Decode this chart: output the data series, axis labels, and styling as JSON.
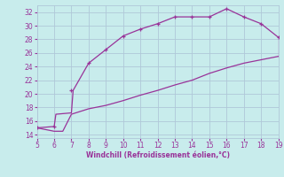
{
  "xlabel": "Windchill (Refroidissement éolien,°C)",
  "bg_color": "#c8ecec",
  "grid_color": "#b0c8d8",
  "line_color": "#993399",
  "xlim": [
    5,
    19
  ],
  "ylim": [
    13.5,
    33.0
  ],
  "xticks": [
    5,
    6,
    7,
    8,
    9,
    10,
    11,
    12,
    13,
    14,
    15,
    16,
    17,
    18,
    19
  ],
  "yticks": [
    14,
    16,
    18,
    20,
    22,
    24,
    26,
    28,
    30,
    32
  ],
  "upper_line_x": [
    5.0,
    6.0,
    6.1,
    7.0,
    7.1,
    8.0,
    9.0,
    10.0,
    11.0,
    12.0,
    13.0,
    14.0,
    15.0,
    16.0,
    17.0,
    18.0,
    19.0
  ],
  "upper_line_y": [
    15.0,
    15.2,
    17.0,
    17.2,
    20.5,
    24.5,
    26.5,
    28.5,
    29.5,
    30.3,
    31.3,
    31.3,
    31.3,
    32.5,
    31.3,
    30.3,
    28.3
  ],
  "lower_line_x": [
    5.0,
    6.0,
    6.5,
    7.0,
    8.0,
    9.0,
    10.0,
    11.0,
    12.0,
    13.0,
    14.0,
    15.0,
    16.0,
    17.0,
    18.0,
    19.0
  ],
  "lower_line_y": [
    15.0,
    14.5,
    14.5,
    17.0,
    17.8,
    18.3,
    19.0,
    19.8,
    20.5,
    21.3,
    22.0,
    23.0,
    23.8,
    24.5,
    25.0,
    25.5
  ],
  "marker_x": [
    5,
    6,
    7,
    8,
    9,
    10,
    11,
    12,
    13,
    14,
    15,
    16,
    17,
    18,
    19
  ],
  "marker_y": [
    15.0,
    15.2,
    20.5,
    24.5,
    26.5,
    28.5,
    29.5,
    30.3,
    31.3,
    31.3,
    31.3,
    32.5,
    31.3,
    30.3,
    28.3
  ],
  "xlabel_fontsize": 5.5,
  "tick_fontsize": 5.5
}
